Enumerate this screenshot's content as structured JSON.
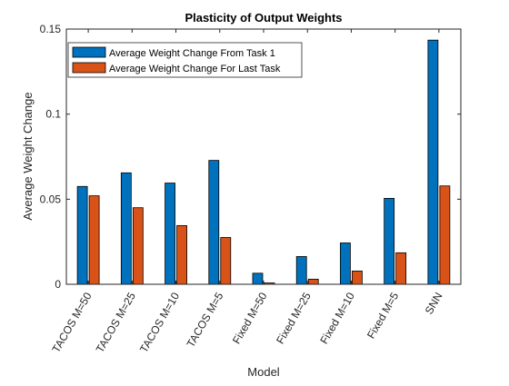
{
  "chart_data": {
    "type": "bar",
    "title": "Plasticity of Output Weights",
    "xlabel": "Model",
    "ylabel": "Average Weight Change",
    "ylim": [
      0,
      0.15
    ],
    "yticks": [
      0,
      0.05,
      0.1,
      0.15
    ],
    "ytick_labels": [
      "0",
      "0.05",
      "0.1",
      "0.15"
    ],
    "categories": [
      "TACOS M=50",
      "TACOS M=25",
      "TACOS M=10",
      "TACOS M=5",
      "Fixed M=50",
      "Fixed M=25",
      "Fixed M=10",
      "Fixed M=5",
      "SNN"
    ],
    "series": [
      {
        "name": "Average Weight Change From Task 1",
        "color": "#0072BD",
        "values": [
          0.0575,
          0.0655,
          0.0595,
          0.0728,
          0.0065,
          0.0163,
          0.0243,
          0.0505,
          0.1435
        ]
      },
      {
        "name": "Average Weight Change For Last Task",
        "color": "#D95319",
        "values": [
          0.052,
          0.045,
          0.0345,
          0.0275,
          0.0008,
          0.003,
          0.0078,
          0.0185,
          0.0578
        ]
      }
    ],
    "grid": false,
    "legend_position": "top-left"
  }
}
